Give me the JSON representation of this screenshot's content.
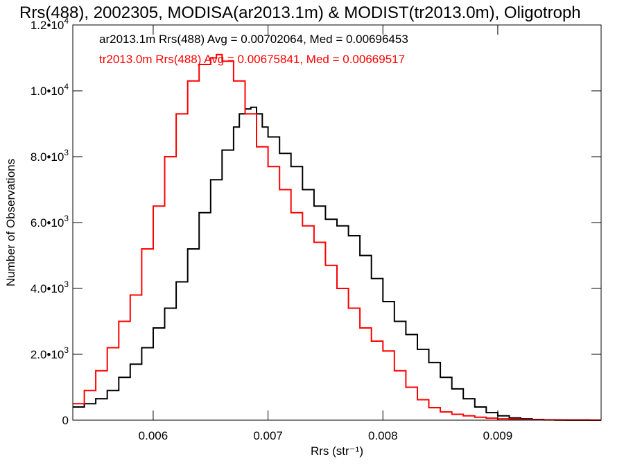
{
  "chart_data": {
    "type": "line",
    "title": "Rrs(488), 2002305, MODISA(ar2013.1m) & MODIST(tr2013.0m), Oligotroph",
    "xlabel": "Rrs (str⁻¹)",
    "ylabel": "Number of Observations",
    "xlim": [
      0.0053,
      0.0099
    ],
    "ylim": [
      0,
      12000
    ],
    "x_ticks": [
      {
        "value": 0.006,
        "label": "0.006"
      },
      {
        "value": 0.007,
        "label": "0.007"
      },
      {
        "value": 0.008,
        "label": "0.008"
      },
      {
        "value": 0.009,
        "label": "0.009"
      }
    ],
    "y_ticks": [
      {
        "value": 0,
        "mant": "0",
        "exp": ""
      },
      {
        "value": 2000,
        "mant": "2.0•10",
        "exp": "3"
      },
      {
        "value": 4000,
        "mant": "4.0•10",
        "exp": "3"
      },
      {
        "value": 6000,
        "mant": "6.0•10",
        "exp": "3"
      },
      {
        "value": 8000,
        "mant": "8.0•10",
        "exp": "3"
      },
      {
        "value": 10000,
        "mant": "1.0•10",
        "exp": "4"
      },
      {
        "value": 12000,
        "mant": "1.2•10",
        "exp": "4"
      }
    ],
    "grid": false,
    "annotations": [
      {
        "text": "ar2013.1m Rrs(488) Avg = 0.00702064, Med = 0.00696453",
        "color": "#000000"
      },
      {
        "text": "tr2013.0m Rrs(488) Avg = 0.00675841, Med = 0.00669517",
        "color": "#ff0000"
      }
    ],
    "series": [
      {
        "color": "#000000",
        "x": [
          0.0053,
          0.0054,
          0.0055,
          0.0056,
          0.0057,
          0.0058,
          0.0059,
          0.006,
          0.0061,
          0.0062,
          0.0063,
          0.0064,
          0.0065,
          0.0066,
          0.0067,
          0.00675,
          0.0068,
          0.00685,
          0.0069,
          0.00695,
          0.007,
          0.0071,
          0.0072,
          0.0073,
          0.0074,
          0.0075,
          0.0076,
          0.0077,
          0.0078,
          0.0079,
          0.008,
          0.0081,
          0.0082,
          0.0083,
          0.0084,
          0.0085,
          0.0086,
          0.0087,
          0.0088,
          0.0089,
          0.009,
          0.0091,
          0.0092,
          0.0093,
          0.0094,
          0.0095,
          0.0096,
          0.0097,
          0.0098,
          0.0099
        ],
        "y": [
          400,
          500,
          650,
          900,
          1300,
          1700,
          2200,
          2800,
          3400,
          4200,
          5200,
          6300,
          7300,
          8200,
          8900,
          9300,
          9450,
          9500,
          9300,
          8900,
          8600,
          8100,
          7700,
          7000,
          6500,
          6100,
          5900,
          5600,
          5000,
          4300,
          3600,
          3000,
          2600,
          2150,
          1750,
          1300,
          950,
          650,
          400,
          230,
          130,
          70,
          40,
          20,
          10,
          5,
          3,
          2,
          1,
          0
        ]
      },
      {
        "color": "#ff0000",
        "x": [
          0.0053,
          0.0054,
          0.0055,
          0.0056,
          0.0057,
          0.0058,
          0.0059,
          0.006,
          0.0061,
          0.0062,
          0.0063,
          0.0064,
          0.0065,
          0.00655,
          0.0066,
          0.0067,
          0.0068,
          0.0069,
          0.007,
          0.0071,
          0.0072,
          0.0073,
          0.0074,
          0.0075,
          0.0076,
          0.0077,
          0.0078,
          0.0079,
          0.008,
          0.0081,
          0.0082,
          0.0083,
          0.0084,
          0.0085,
          0.0086,
          0.0087,
          0.0088,
          0.0089,
          0.009,
          0.0091,
          0.0092,
          0.0093,
          0.0094,
          0.0095,
          0.0096,
          0.0097,
          0.0098,
          0.0099
        ],
        "y": [
          500,
          900,
          1500,
          2200,
          3000,
          3800,
          5200,
          6500,
          8000,
          9300,
          10300,
          10800,
          11000,
          11100,
          10900,
          10300,
          9300,
          8300,
          7700,
          7000,
          6300,
          5900,
          5400,
          4700,
          4000,
          3400,
          2800,
          2400,
          2100,
          1500,
          1000,
          620,
          380,
          250,
          180,
          130,
          90,
          60,
          40,
          25,
          15,
          10,
          8,
          6,
          5,
          4,
          3,
          2
        ]
      }
    ]
  }
}
